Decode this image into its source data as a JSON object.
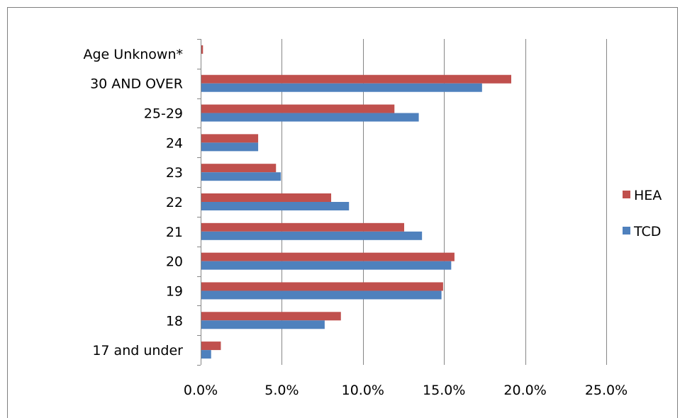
{
  "chart_data": {
    "type": "bar",
    "orientation": "horizontal",
    "categories": [
      "17 and under",
      "18",
      "19",
      "20",
      "21",
      "22",
      "23",
      "24",
      "25-29",
      "30 AND OVER",
      "Age Unknown*"
    ],
    "series": [
      {
        "name": "HEA",
        "color": "#C0504D",
        "values": [
          1.2,
          8.6,
          14.9,
          15.6,
          12.5,
          8.0,
          4.6,
          3.5,
          11.9,
          19.1,
          0.1
        ]
      },
      {
        "name": "TCD",
        "color": "#4F81BD",
        "values": [
          0.6,
          7.6,
          14.8,
          15.4,
          13.6,
          9.1,
          4.9,
          3.5,
          13.4,
          17.3,
          0.0
        ]
      }
    ],
    "x_ticks": [
      "0.0%",
      "5.0%",
      "10.0%",
      "15.0%",
      "20.0%",
      "25.0%"
    ],
    "xlim": [
      0,
      25
    ],
    "grid": true,
    "legend_position": "right",
    "title": "",
    "xlabel": "",
    "ylabel": ""
  }
}
